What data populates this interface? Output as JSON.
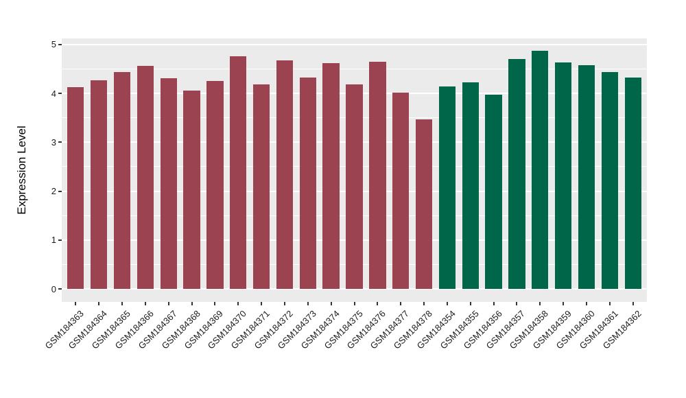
{
  "chart_data": {
    "type": "bar",
    "title": "",
    "xlabel": "",
    "ylabel": "Expression Level",
    "ylim": [
      0,
      5
    ],
    "yticks": [
      0,
      1,
      2,
      3,
      4,
      5
    ],
    "grid": "on",
    "legend": "none",
    "categories": [
      "GSM184363",
      "GSM184364",
      "GSM184365",
      "GSM184366",
      "GSM184367",
      "GSM184368",
      "GSM184369",
      "GSM184370",
      "GSM184371",
      "GSM184372",
      "GSM184373",
      "GSM184374",
      "GSM184375",
      "GSM184376",
      "GSM184377",
      "GSM184378",
      "GSM184354",
      "GSM184355",
      "GSM184356",
      "GSM184357",
      "GSM184358",
      "GSM184359",
      "GSM184360",
      "GSM184361",
      "GSM184362"
    ],
    "values": [
      4.13,
      4.27,
      4.44,
      4.56,
      4.31,
      4.06,
      4.25,
      4.76,
      4.18,
      4.67,
      4.32,
      4.62,
      4.18,
      4.64,
      4.01,
      3.47,
      4.14,
      4.22,
      3.97,
      4.7,
      4.87,
      4.63,
      4.58,
      4.43,
      4.33
    ],
    "group_index": [
      0,
      0,
      0,
      0,
      0,
      0,
      0,
      0,
      0,
      0,
      0,
      0,
      0,
      0,
      0,
      0,
      1,
      1,
      1,
      1,
      1,
      1,
      1,
      1,
      1
    ],
    "colors": {
      "group_colors": [
        "#9B4350",
        "#006649"
      ],
      "panel_bg": "#EBEBEB",
      "gridline": "#FFFFFF",
      "tick_mark": "#333333",
      "axis_text": "#1A1A1A",
      "axis_title": "#000000",
      "page_bg": "#FFFFFF"
    }
  }
}
